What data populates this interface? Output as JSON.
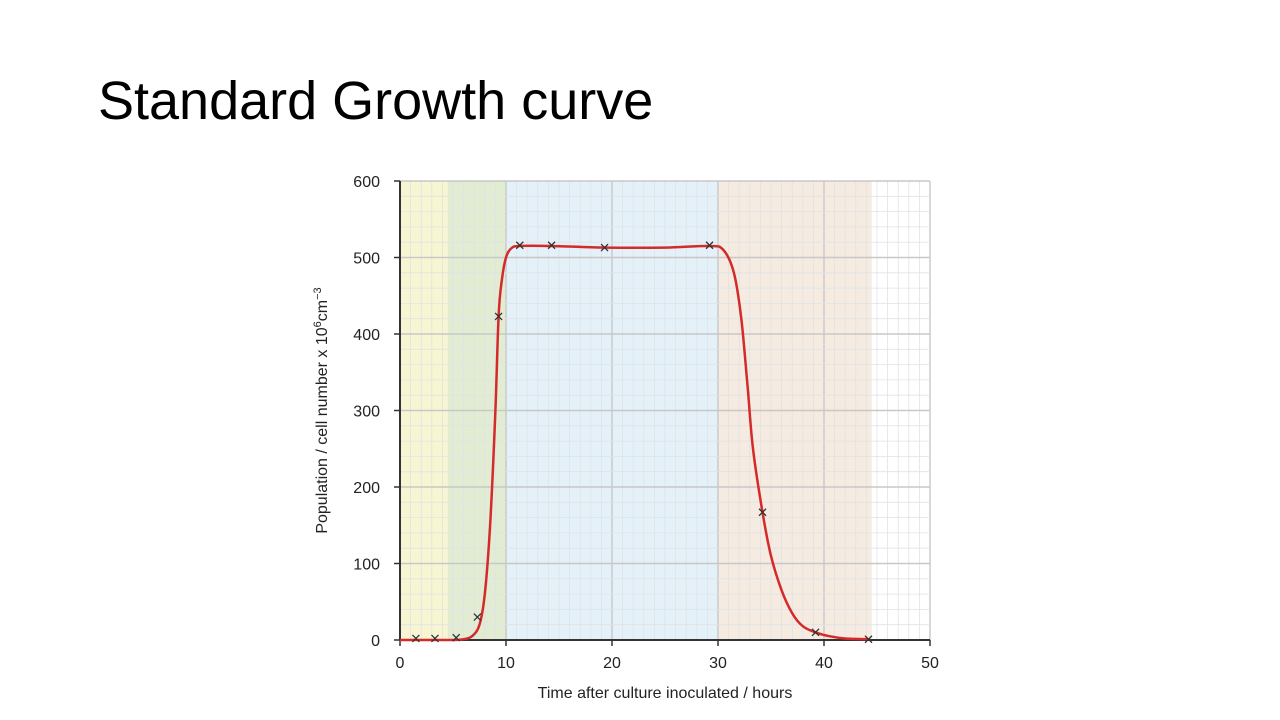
{
  "slide": {
    "title": "Standard Growth curve"
  },
  "chart_data": {
    "type": "line",
    "title": "",
    "xlabel": "Time after culture inoculated / hours",
    "ylabel": {
      "prefix": "Population / cell number x 10",
      "exp1": "6",
      "mid": "cm",
      "exp2": "−3"
    },
    "xlim": [
      0,
      50
    ],
    "ylim": [
      0,
      600
    ],
    "xticks": [
      0,
      10,
      20,
      30,
      40,
      50
    ],
    "yticks": [
      0,
      100,
      200,
      300,
      400,
      500,
      600
    ],
    "grid": true,
    "phase_bands": [
      {
        "x0": 0,
        "x1": 4.5,
        "color": "#f8f5d2"
      },
      {
        "x0": 4.5,
        "x1": 10,
        "color": "#e2ecd2"
      },
      {
        "x0": 10,
        "x1": 30,
        "color": "#e5f1f9"
      },
      {
        "x0": 30,
        "x1": 44.5,
        "color": "#f5ebe0"
      }
    ],
    "series": [
      {
        "points": [
          [
            1.5,
            2
          ],
          [
            3.3,
            2
          ],
          [
            5.3,
            3
          ],
          [
            7.3,
            30
          ],
          [
            9.3,
            423
          ],
          [
            11.3,
            516
          ],
          [
            14.3,
            516
          ],
          [
            19.3,
            513
          ],
          [
            29.2,
            516
          ],
          [
            34.2,
            167
          ],
          [
            39.2,
            10
          ],
          [
            44.2,
            1
          ]
        ],
        "curve": [
          [
            0,
            0
          ],
          [
            3,
            0
          ],
          [
            5,
            0
          ],
          [
            6,
            1
          ],
          [
            6.8,
            5
          ],
          [
            7.5,
            20
          ],
          [
            8,
            60
          ],
          [
            8.5,
            150
          ],
          [
            9,
            300
          ],
          [
            9.3,
            423
          ],
          [
            9.6,
            470
          ],
          [
            10,
            500
          ],
          [
            10.5,
            512
          ],
          [
            11.3,
            515
          ],
          [
            14.3,
            515
          ],
          [
            19.3,
            513
          ],
          [
            25,
            513
          ],
          [
            29.2,
            515
          ],
          [
            30.5,
            510
          ],
          [
            31.5,
            480
          ],
          [
            32.2,
            420
          ],
          [
            32.8,
            330
          ],
          [
            33.3,
            250
          ],
          [
            34.2,
            167
          ],
          [
            35,
            110
          ],
          [
            36,
            65
          ],
          [
            37,
            35
          ],
          [
            38,
            18
          ],
          [
            39.2,
            10
          ],
          [
            40.5,
            5
          ],
          [
            42,
            2
          ],
          [
            44.2,
            1
          ]
        ],
        "color": "#d42a2a"
      }
    ]
  }
}
